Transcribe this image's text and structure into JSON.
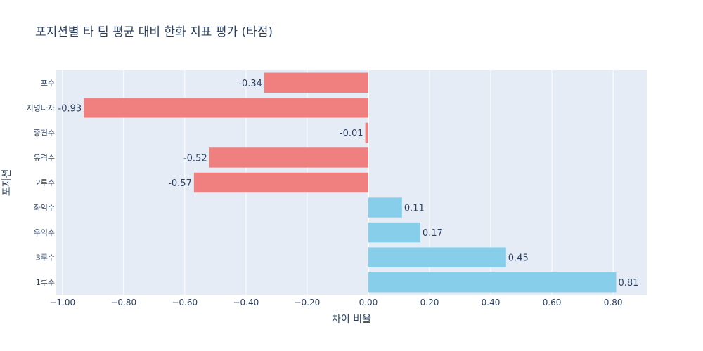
{
  "chart_data": {
    "type": "bar",
    "orientation": "horizontal",
    "title": "포지션별 타 팀 평균 대비 한화 지표 평가 (타점)",
    "xlabel": "차이 비율",
    "ylabel": "포지션",
    "categories": [
      "포수",
      "지명타자",
      "중견수",
      "유격수",
      "2루수",
      "좌익수",
      "우익수",
      "3루수",
      "1루수"
    ],
    "values": [
      -0.34,
      -0.93,
      -0.01,
      -0.52,
      -0.57,
      0.11,
      0.17,
      0.45,
      0.81
    ],
    "labels": [
      "-0.34",
      "-0.93",
      "-0.01",
      "-0.52",
      "-0.57",
      "0.11",
      "0.17",
      "0.45",
      "0.81"
    ],
    "xlim": [
      -1.02,
      0.91
    ],
    "xticks": [
      -1.0,
      -0.8,
      -0.6,
      -0.4,
      -0.2,
      0.0,
      0.2,
      0.4,
      0.6,
      0.8
    ],
    "xtick_labels": [
      "−1.00",
      "−0.80",
      "−0.60",
      "−0.40",
      "−0.20",
      "0.00",
      "0.20",
      "0.40",
      "0.60",
      "0.80"
    ],
    "grid": true,
    "colors": {
      "negative": "#F08080",
      "positive": "#87CEEB",
      "plot_bg": "#E5ECF6",
      "grid": "#FFFFFF",
      "text": "#2a3f5f"
    }
  }
}
